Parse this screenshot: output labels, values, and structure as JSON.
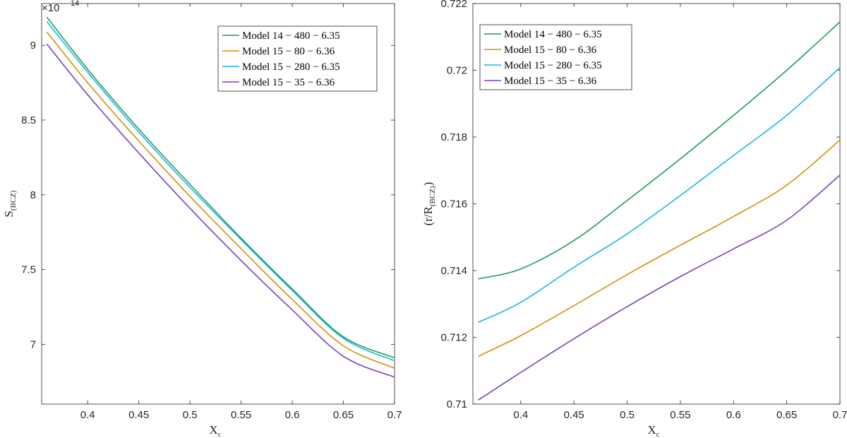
{
  "chart_data": [
    {
      "type": "line",
      "name": "left",
      "xlabel": "X",
      "xlabel_sub": "c",
      "ylabel": "S",
      "ylabel_sub": "(BCZ)",
      "xlim": [
        0.355,
        0.7
      ],
      "ylim": [
        6.6,
        9.28
      ],
      "multiplier": "×10",
      "multiplier_exp": "14",
      "xticks": [
        0.4,
        0.45,
        0.5,
        0.55,
        0.6,
        0.65,
        0.7
      ],
      "xtick_labels": [
        "0.4",
        "0.45",
        "0.5",
        "0.55",
        "0.6",
        "0.65",
        "0.7"
      ],
      "yticks": [
        7,
        7.5,
        8,
        8.5,
        9
      ],
      "ytick_labels": [
        "7",
        "7.5",
        "8",
        "8.5",
        "9"
      ],
      "legend_position": "top-right",
      "series": [
        {
          "name": "Model 14 − 480 − 6.35",
          "color": "#1a9e55",
          "x": [
            0.36,
            0.4,
            0.45,
            0.5,
            0.55,
            0.6,
            0.65,
            0.7
          ],
          "y": [
            9.19,
            8.84,
            8.44,
            8.07,
            7.71,
            7.37,
            7.05,
            6.91
          ]
        },
        {
          "name": "Model 15 − 80 − 6.36",
          "color": "#d4900a",
          "x": [
            0.36,
            0.4,
            0.45,
            0.5,
            0.55,
            0.6,
            0.65,
            0.7
          ],
          "y": [
            9.09,
            8.75,
            8.36,
            7.99,
            7.64,
            7.3,
            6.99,
            6.84
          ]
        },
        {
          "name": "Model 15 − 280 − 6.35",
          "color": "#1ab4e8",
          "x": [
            0.36,
            0.4,
            0.45,
            0.5,
            0.55,
            0.6,
            0.65,
            0.7
          ],
          "y": [
            9.16,
            8.82,
            8.42,
            8.05,
            7.7,
            7.36,
            7.04,
            6.89
          ]
        },
        {
          "name": "Model 15 − 35 − 6.36",
          "color": "#7b3fbf",
          "x": [
            0.36,
            0.4,
            0.45,
            0.5,
            0.55,
            0.6,
            0.65,
            0.7
          ],
          "y": [
            9.01,
            8.67,
            8.28,
            7.91,
            7.56,
            7.23,
            6.92,
            6.78
          ]
        }
      ]
    },
    {
      "type": "line",
      "name": "right",
      "xlabel": "X",
      "xlabel_sub": "c",
      "ylabel": "(r/R",
      "ylabel_sub": "(BCZ)",
      "ylabel_end": ")",
      "xlim": [
        0.355,
        0.7
      ],
      "ylim": [
        0.71,
        0.722
      ],
      "xticks": [
        0.4,
        0.45,
        0.5,
        0.55,
        0.6,
        0.65,
        0.7
      ],
      "xtick_labels": [
        "0.4",
        "0.45",
        "0.5",
        "0.55",
        "0.6",
        "0.65",
        "0.7"
      ],
      "yticks": [
        0.71,
        0.712,
        0.714,
        0.716,
        0.718,
        0.72,
        0.722
      ],
      "ytick_labels": [
        "0.71",
        "0.712",
        "0.714",
        "0.716",
        "0.718",
        "0.72",
        "0.722"
      ],
      "legend_position": "top-left",
      "series": [
        {
          "name": "Model 14 − 480 − 6.35",
          "color": "#1a9e55",
          "x": [
            0.36,
            0.4,
            0.45,
            0.5,
            0.55,
            0.6,
            0.65,
            0.7
          ],
          "y": [
            0.71375,
            0.71405,
            0.7149,
            0.7161,
            0.71735,
            0.71865,
            0.72,
            0.72145
          ]
        },
        {
          "name": "Model 15 − 80 − 6.36",
          "color": "#d4900a",
          "x": [
            0.36,
            0.4,
            0.45,
            0.5,
            0.55,
            0.6,
            0.65,
            0.7
          ],
          "y": [
            0.71143,
            0.71205,
            0.71295,
            0.71388,
            0.71476,
            0.71562,
            0.71656,
            0.71791
          ]
        },
        {
          "name": "Model 15 − 280 − 6.35",
          "color": "#1ab4e8",
          "x": [
            0.36,
            0.4,
            0.45,
            0.5,
            0.55,
            0.6,
            0.65,
            0.7
          ],
          "y": [
            0.71245,
            0.71305,
            0.7141,
            0.7151,
            0.71625,
            0.71745,
            0.71865,
            0.72008
          ]
        },
        {
          "name": "Model 15 − 35 − 6.36",
          "color": "#7b3fbf",
          "x": [
            0.36,
            0.4,
            0.45,
            0.5,
            0.55,
            0.6,
            0.65,
            0.7
          ],
          "y": [
            0.71012,
            0.71095,
            0.71196,
            0.71292,
            0.71382,
            0.71465,
            0.71551,
            0.71686
          ]
        }
      ]
    }
  ]
}
